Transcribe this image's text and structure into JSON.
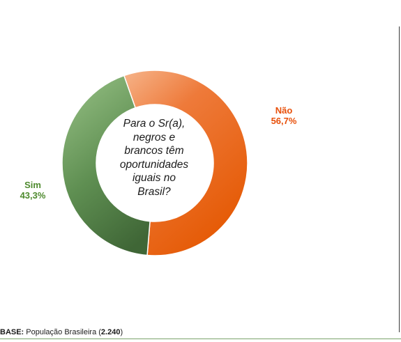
{
  "chart_data": {
    "type": "pie",
    "style": "donut",
    "center_text": "Para o Sr(a), negros e brancos têm oportunidades iguais no Brasil?",
    "center_lines": [
      "Para o Sr(a),",
      "negros e",
      "brancos têm",
      "oportunidades",
      "iguais no",
      "Brasil?"
    ],
    "slices": [
      {
        "name": "Não",
        "value": 56.7,
        "display": "56,7%",
        "color": "#e8500a"
      },
      {
        "name": "Sim",
        "value": 43.3,
        "display": "43,3%",
        "color": "#4e8a2e"
      }
    ]
  },
  "footer": {
    "base_label": "BASE:",
    "base_text": " População Brasileira (",
    "base_value": "2.240",
    "base_close": ")"
  }
}
